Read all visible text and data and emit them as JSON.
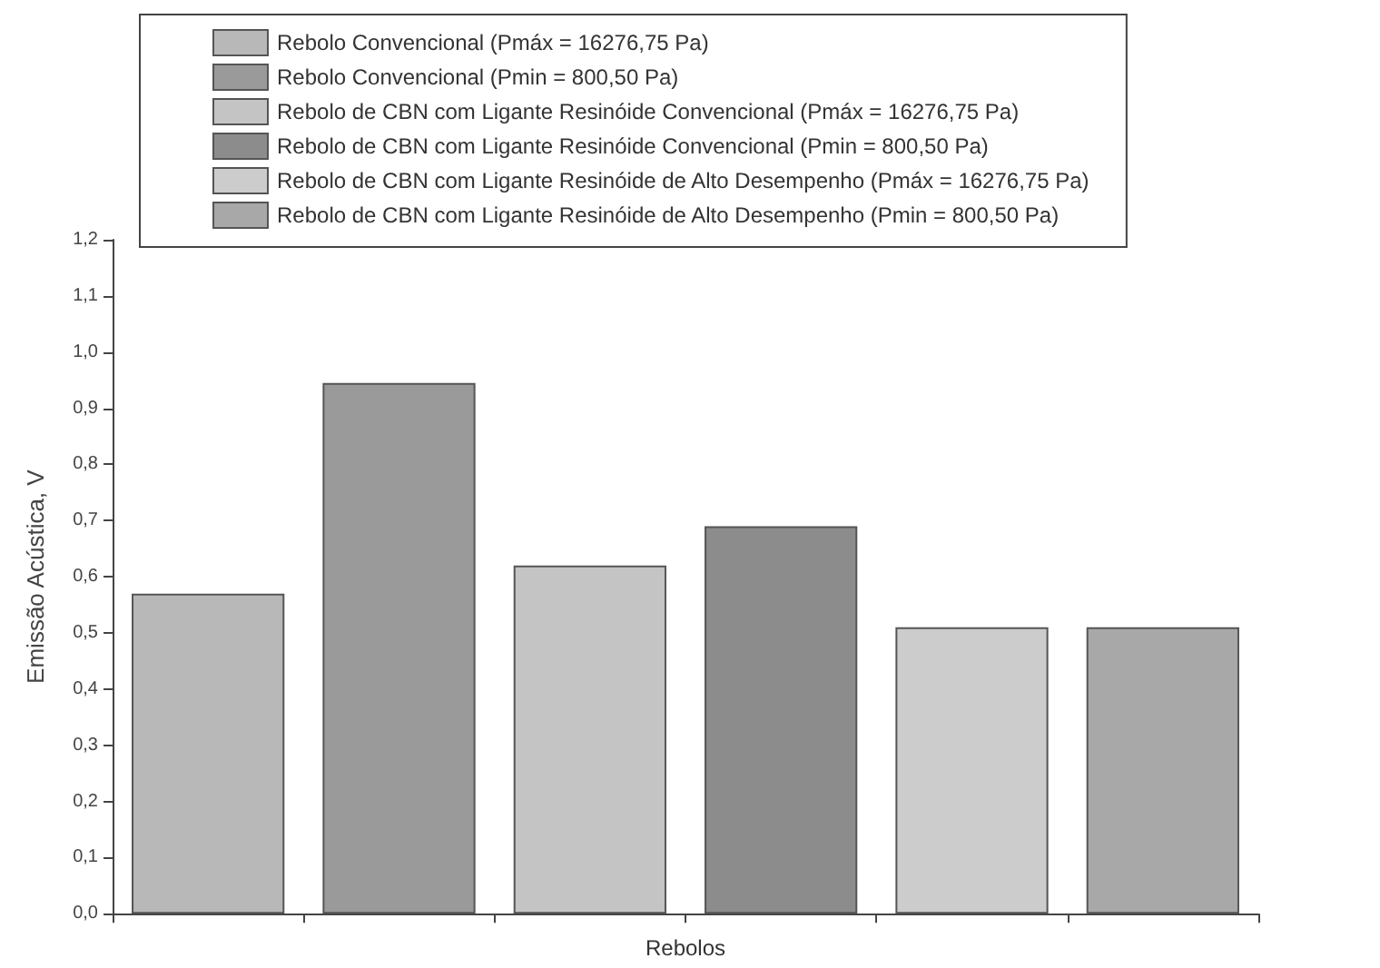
{
  "chart_data": {
    "type": "bar",
    "xlabel": "Rebolos",
    "ylabel": "Emissão Acústica, V",
    "categories": [
      null,
      null,
      null,
      null,
      null,
      null
    ],
    "series": [
      {
        "name": "Rebolo Convencional (Pmáx = 16276,75 Pa)",
        "color": "#b8b8b8",
        "values": [
          0.57,
          null,
          null,
          null,
          null,
          null
        ]
      },
      {
        "name": "Rebolo Convencional (Pmin = 800,50 Pa)",
        "color": "#9a9a9a",
        "values": [
          null,
          0.945,
          null,
          null,
          null,
          null
        ]
      },
      {
        "name": "Rebolo de CBN com Ligante Resinóide Convencional (Pmáx = 16276,75 Pa)",
        "color": "#c4c4c4",
        "values": [
          null,
          null,
          0.62,
          null,
          null,
          null
        ]
      },
      {
        "name": "Rebolo de CBN com Ligante Resinóide Convencional (Pmin = 800,50 Pa)",
        "color": "#8c8c8c",
        "values": [
          null,
          null,
          null,
          0.69,
          null,
          null
        ]
      },
      {
        "name": "Rebolo de CBN com Ligante Resinóide de Alto Desempenho (Pmáx = 16276,75 Pa)",
        "color": "#cccccc",
        "values": [
          null,
          null,
          null,
          null,
          0.51,
          null
        ]
      },
      {
        "name": "Rebolo de CBN com Ligante Resinóide de Alto Desempenho (Pmin = 800,50 Pa)",
        "color": "#a8a8a8",
        "values": [
          null,
          null,
          null,
          null,
          null,
          0.51
        ]
      }
    ],
    "ylim": [
      0,
      1.2
    ],
    "yticks": [
      {
        "value": 0,
        "label": "0,0"
      },
      {
        "value": 0.1,
        "label": "0,1"
      },
      {
        "value": 0.2,
        "label": "0,2"
      },
      {
        "value": 0.3,
        "label": "0,3"
      },
      {
        "value": 0.4,
        "label": "0,4"
      },
      {
        "value": 0.5,
        "label": "0,5"
      },
      {
        "value": 0.6,
        "label": "0,6"
      },
      {
        "value": 0.7,
        "label": "0,7"
      },
      {
        "value": 0.8,
        "label": "0,8"
      },
      {
        "value": 0.9,
        "label": "0,9"
      },
      {
        "value": 1.0,
        "label": "1,0"
      },
      {
        "value": 1.1,
        "label": "1,1"
      },
      {
        "value": 1.2,
        "label": "1,2"
      }
    ],
    "grid": false,
    "legend": "top"
  }
}
